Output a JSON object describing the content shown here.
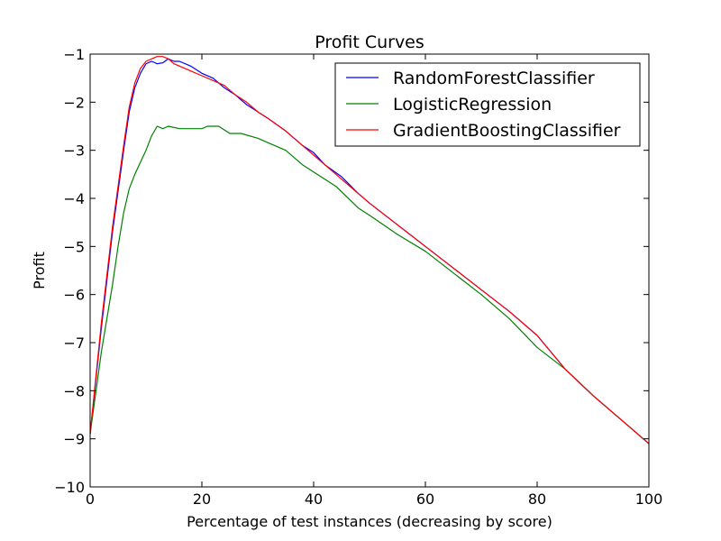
{
  "chart_data": {
    "type": "line",
    "title": "Profit Curves",
    "xlabel": "Percentage of test instances (decreasing by score)",
    "ylabel": "Profit",
    "xlim": [
      0,
      100
    ],
    "ylim": [
      -10,
      -1
    ],
    "xticks": [
      0,
      20,
      40,
      60,
      80,
      100
    ],
    "yticks": [
      -10,
      -9,
      -8,
      -7,
      -6,
      -5,
      -4,
      -3,
      -2,
      -1
    ],
    "xtick_labels": [
      "0",
      "20",
      "40",
      "60",
      "80",
      "100"
    ],
    "ytick_labels": [
      "−10",
      "−9",
      "−8",
      "−7",
      "−6",
      "−5",
      "−4",
      "−3",
      "−2",
      "−1"
    ],
    "grid": false,
    "legend_position": "top-right",
    "series": [
      {
        "name": "RandomForestClassifier",
        "color": "#0000ff",
        "points": [
          [
            0,
            -8.9
          ],
          [
            2,
            -6.7
          ],
          [
            4,
            -4.7
          ],
          [
            6,
            -3.0
          ],
          [
            7,
            -2.2
          ],
          [
            8,
            -1.7
          ],
          [
            9,
            -1.4
          ],
          [
            10,
            -1.2
          ],
          [
            11,
            -1.15
          ],
          [
            12,
            -1.2
          ],
          [
            13,
            -1.18
          ],
          [
            14,
            -1.1
          ],
          [
            15,
            -1.15
          ],
          [
            16,
            -1.15
          ],
          [
            18,
            -1.25
          ],
          [
            20,
            -1.4
          ],
          [
            22,
            -1.5
          ],
          [
            24,
            -1.7
          ],
          [
            26,
            -1.85
          ],
          [
            28,
            -2.05
          ],
          [
            30,
            -2.2
          ],
          [
            32,
            -2.35
          ],
          [
            35,
            -2.6
          ],
          [
            38,
            -2.9
          ],
          [
            40,
            -3.05
          ],
          [
            42,
            -3.3
          ],
          [
            45,
            -3.55
          ],
          [
            48,
            -3.9
          ],
          [
            50,
            -4.1
          ],
          [
            55,
            -4.55
          ],
          [
            60,
            -5.0
          ],
          [
            65,
            -5.45
          ],
          [
            70,
            -5.9
          ],
          [
            75,
            -6.35
          ],
          [
            80,
            -6.85
          ],
          [
            85,
            -7.55
          ],
          [
            90,
            -8.1
          ],
          [
            95,
            -8.6
          ],
          [
            100,
            -9.1
          ]
        ]
      },
      {
        "name": "LogisticRegression",
        "color": "#008000",
        "points": [
          [
            0,
            -8.9
          ],
          [
            2,
            -7.2
          ],
          [
            4,
            -5.8
          ],
          [
            5,
            -5.0
          ],
          [
            6,
            -4.3
          ],
          [
            7,
            -3.8
          ],
          [
            8,
            -3.5
          ],
          [
            9,
            -3.25
          ],
          [
            10,
            -3.0
          ],
          [
            11,
            -2.7
          ],
          [
            12,
            -2.5
          ],
          [
            13,
            -2.55
          ],
          [
            14,
            -2.5
          ],
          [
            16,
            -2.55
          ],
          [
            18,
            -2.55
          ],
          [
            20,
            -2.55
          ],
          [
            21,
            -2.5
          ],
          [
            23,
            -2.5
          ],
          [
            25,
            -2.65
          ],
          [
            27,
            -2.65
          ],
          [
            30,
            -2.75
          ],
          [
            32,
            -2.85
          ],
          [
            35,
            -3.0
          ],
          [
            38,
            -3.3
          ],
          [
            40,
            -3.45
          ],
          [
            44,
            -3.75
          ],
          [
            48,
            -4.2
          ],
          [
            50,
            -4.35
          ],
          [
            55,
            -4.75
          ],
          [
            60,
            -5.1
          ],
          [
            65,
            -5.55
          ],
          [
            70,
            -6.0
          ],
          [
            75,
            -6.5
          ],
          [
            80,
            -7.1
          ],
          [
            85,
            -7.55
          ],
          [
            90,
            -8.1
          ],
          [
            95,
            -8.6
          ],
          [
            100,
            -9.1
          ]
        ]
      },
      {
        "name": "GradientBoostingClassifier",
        "color": "#ff0000",
        "points": [
          [
            0,
            -8.9
          ],
          [
            2,
            -6.6
          ],
          [
            4,
            -4.6
          ],
          [
            6,
            -2.9
          ],
          [
            7,
            -2.1
          ],
          [
            8,
            -1.6
          ],
          [
            9,
            -1.3
          ],
          [
            10,
            -1.15
          ],
          [
            11,
            -1.1
          ],
          [
            12,
            -1.05
          ],
          [
            13,
            -1.05
          ],
          [
            14,
            -1.1
          ],
          [
            15,
            -1.2
          ],
          [
            16,
            -1.25
          ],
          [
            18,
            -1.35
          ],
          [
            20,
            -1.45
          ],
          [
            22,
            -1.55
          ],
          [
            24,
            -1.65
          ],
          [
            26,
            -1.85
          ],
          [
            28,
            -2.0
          ],
          [
            30,
            -2.2
          ],
          [
            32,
            -2.35
          ],
          [
            35,
            -2.6
          ],
          [
            38,
            -2.9
          ],
          [
            40,
            -3.1
          ],
          [
            42,
            -3.3
          ],
          [
            45,
            -3.6
          ],
          [
            48,
            -3.9
          ],
          [
            50,
            -4.1
          ],
          [
            55,
            -4.55
          ],
          [
            60,
            -5.0
          ],
          [
            65,
            -5.45
          ],
          [
            70,
            -5.9
          ],
          [
            75,
            -6.35
          ],
          [
            80,
            -6.85
          ],
          [
            85,
            -7.55
          ],
          [
            90,
            -8.1
          ],
          [
            95,
            -8.6
          ],
          [
            100,
            -9.1
          ]
        ]
      }
    ]
  }
}
